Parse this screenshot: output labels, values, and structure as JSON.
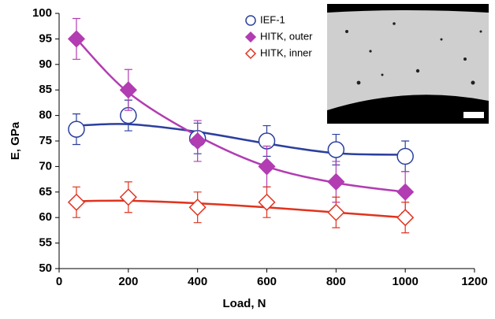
{
  "chart_data": {
    "type": "scatter",
    "x_label": "Load, N",
    "y_label": "E, GPa",
    "xlim": [
      0,
      1200
    ],
    "xticks": [
      0,
      200,
      400,
      600,
      800,
      1000,
      1200
    ],
    "ylim": [
      50,
      100
    ],
    "yticks": [
      50,
      55,
      60,
      65,
      70,
      75,
      80,
      85,
      90,
      95,
      100
    ],
    "x": [
      50,
      200,
      400,
      600,
      800,
      1000
    ],
    "trend_x": [
      50,
      200,
      400,
      600,
      800,
      1000
    ],
    "series": [
      {
        "name": "IEF-1",
        "color": "#2b3f9e",
        "marker": "circle",
        "filled": false,
        "values": [
          77.3,
          80,
          75.5,
          75,
          73.3,
          72
        ],
        "errors": [
          3,
          3,
          3,
          3,
          3,
          3
        ],
        "trend": [
          78,
          78.3,
          76.8,
          74.5,
          72.6,
          72.3
        ]
      },
      {
        "name": "HITK, outer",
        "color": "#b23cb2",
        "marker": "diamond",
        "filled": true,
        "values": [
          95,
          85,
          75,
          70,
          67,
          65
        ],
        "errors": [
          4,
          4,
          4,
          4,
          4,
          4
        ],
        "trend": [
          95,
          84.5,
          76,
          70,
          66.8,
          65
        ]
      },
      {
        "name": "HITK, inner",
        "color": "#e0331f",
        "marker": "diamond",
        "filled": false,
        "values": [
          63,
          64,
          62,
          63,
          61,
          60
        ],
        "errors": [
          3,
          3,
          3,
          3,
          3,
          3
        ],
        "trend": [
          63.2,
          63.3,
          62.8,
          62,
          61,
          60
        ]
      }
    ]
  }
}
